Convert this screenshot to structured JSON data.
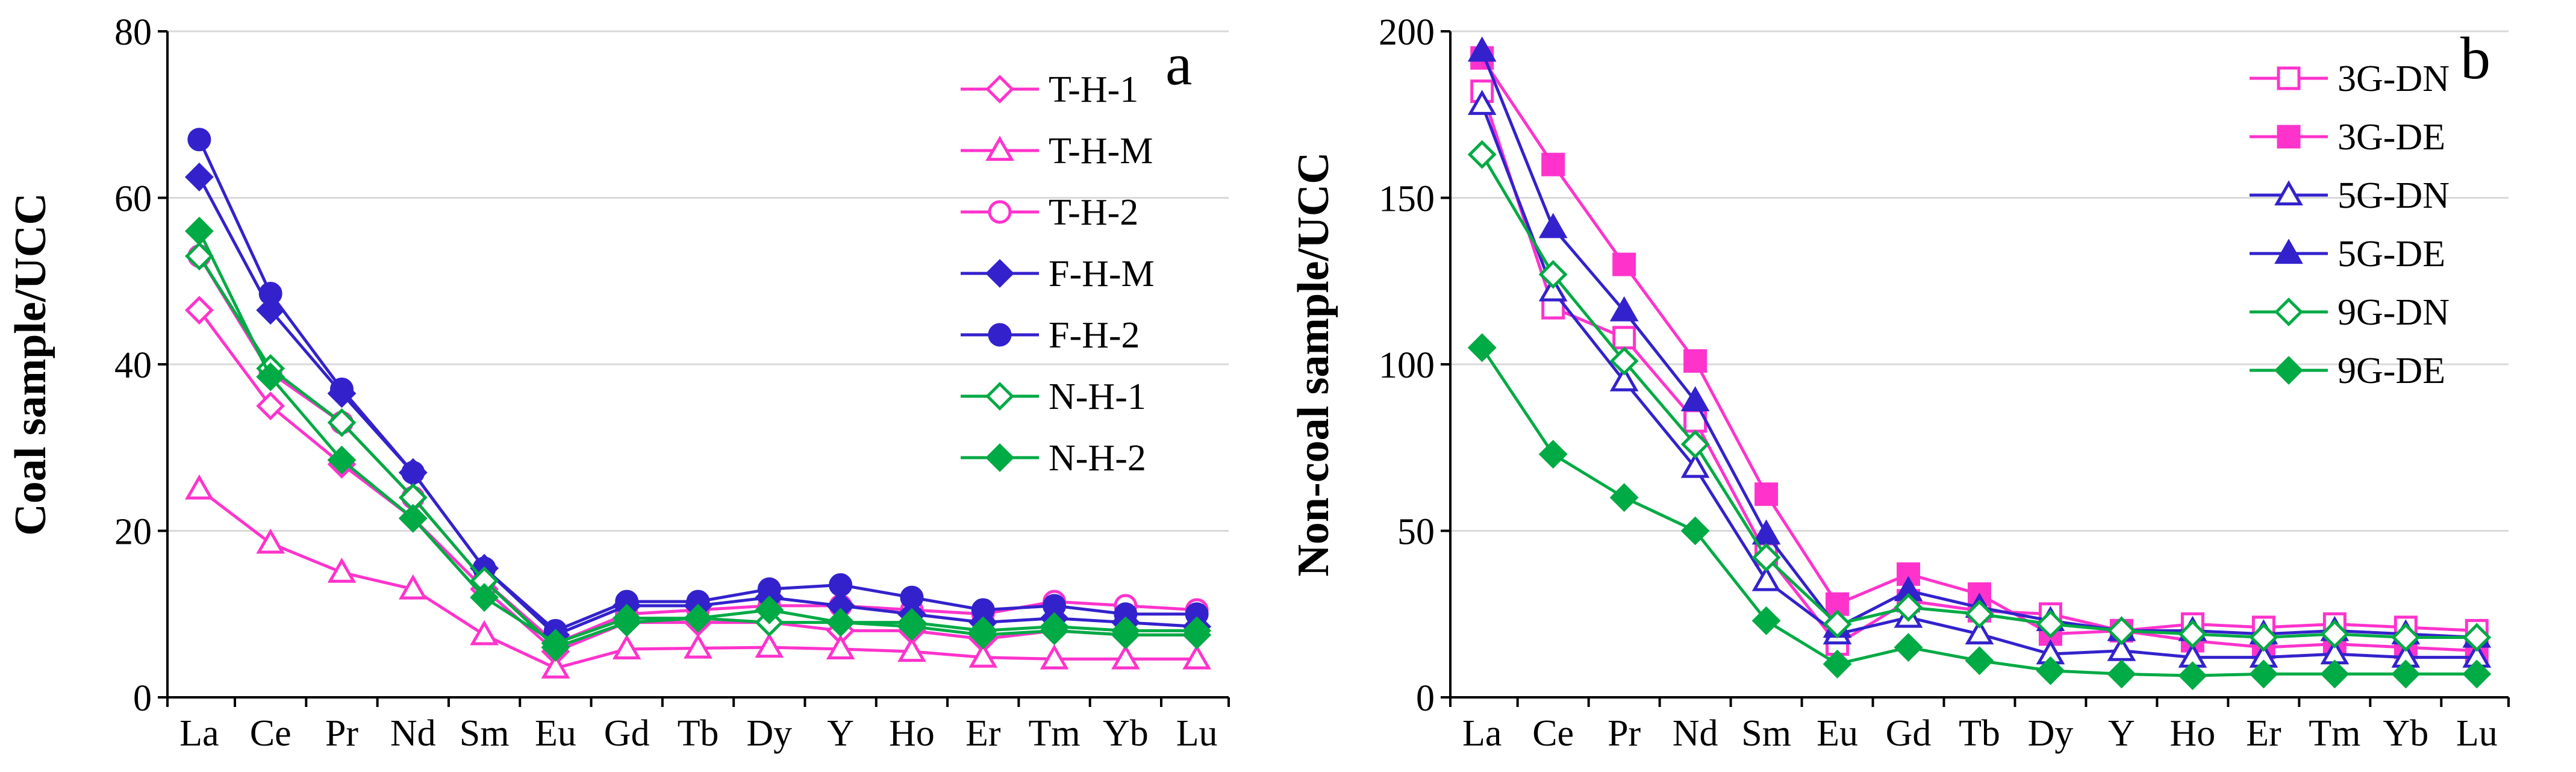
{
  "chart_data": [
    {
      "type": "line",
      "panel_label": "a",
      "title": "",
      "xlabel": "",
      "ylabel": "Coal sample/UCC",
      "ylim": [
        0,
        80
      ],
      "yticks": [
        0,
        20,
        40,
        60,
        80
      ],
      "grid": true,
      "legend_position": "top-right",
      "categories": [
        "La",
        "Ce",
        "Pr",
        "Nd",
        "Sm",
        "Eu",
        "Gd",
        "Tb",
        "Dy",
        "Y",
        "Ho",
        "Er",
        "Tm",
        "Yb",
        "Lu"
      ],
      "series": [
        {
          "name": "T-H-1",
          "color": "#ff33cc",
          "marker": "diamond",
          "filled": false,
          "values": [
            46.5,
            35,
            28,
            21.5,
            13,
            5.5,
            9,
            9,
            9,
            8,
            8,
            7,
            8,
            7.5,
            7.5
          ]
        },
        {
          "name": "T-H-M",
          "color": "#ff33cc",
          "marker": "triangle",
          "filled": false,
          "values": [
            25,
            18.5,
            15,
            13,
            7.5,
            3.5,
            5.8,
            5.9,
            6,
            5.8,
            5.5,
            4.8,
            4.6,
            4.6,
            4.6
          ]
        },
        {
          "name": "T-H-2",
          "color": "#ff33cc",
          "marker": "circle",
          "filled": false,
          "values": [
            53,
            39,
            33,
            24,
            14,
            6.5,
            10,
            10.5,
            11,
            11,
            10.5,
            10,
            11.5,
            11,
            10.5
          ]
        },
        {
          "name": "F-H-M",
          "color": "#3322cc",
          "marker": "diamond",
          "filled": true,
          "values": [
            62.5,
            46.5,
            36.5,
            27,
            15.5,
            7.5,
            11,
            11,
            12,
            11,
            10,
            9,
            9.5,
            9,
            8.5
          ]
        },
        {
          "name": "F-H-2",
          "color": "#3322cc",
          "marker": "circle",
          "filled": true,
          "values": [
            67,
            48.5,
            37,
            27,
            15.5,
            8,
            11.5,
            11.5,
            13,
            13.5,
            12,
            10.5,
            11,
            10,
            10
          ]
        },
        {
          "name": "N-H-1",
          "color": "#00aa44",
          "marker": "diamond",
          "filled": false,
          "values": [
            53,
            39.5,
            33,
            24,
            14,
            6,
            9,
            9.5,
            9,
            9,
            8.5,
            7.5,
            8,
            7.5,
            7.5
          ]
        },
        {
          "name": "N-H-2",
          "color": "#00aa44",
          "marker": "diamond",
          "filled": true,
          "values": [
            56,
            38.5,
            28.5,
            21.5,
            12,
            6.5,
            9.5,
            9.5,
            10.5,
            9,
            9,
            8,
            8.5,
            8,
            8
          ]
        }
      ]
    },
    {
      "type": "line",
      "panel_label": "b",
      "title": "",
      "xlabel": "",
      "ylabel": "Non-coal sample/UCC",
      "ylim": [
        0,
        200
      ],
      "yticks": [
        0,
        50,
        100,
        150,
        200
      ],
      "grid": true,
      "legend_position": "top-right",
      "categories": [
        "La",
        "Ce",
        "Pr",
        "Nd",
        "Sm",
        "Eu",
        "Gd",
        "Tb",
        "Dy",
        "Y",
        "Ho",
        "Er",
        "Tm",
        "Yb",
        "Lu"
      ],
      "series": [
        {
          "name": "3G-DN",
          "color": "#ff33cc",
          "marker": "square",
          "filled": false,
          "values": [
            182,
            117,
            108,
            83,
            43,
            16,
            29,
            26,
            25,
            20,
            22,
            21,
            22,
            21,
            20
          ]
        },
        {
          "name": "3G-DE",
          "color": "#ff33cc",
          "marker": "square",
          "filled": true,
          "values": [
            192,
            160,
            130,
            101,
            61,
            28,
            37,
            31,
            19,
            20,
            17,
            15,
            16,
            15,
            14
          ]
        },
        {
          "name": "5G-DN",
          "color": "#3322cc",
          "marker": "triangle",
          "filled": false,
          "values": [
            178,
            122,
            95,
            69,
            35,
            19,
            24,
            19,
            13,
            14,
            12,
            12,
            13,
            12,
            12
          ]
        },
        {
          "name": "5G-DE",
          "color": "#3322cc",
          "marker": "triangle",
          "filled": true,
          "values": [
            194,
            141,
            116,
            89,
            49,
            21,
            32,
            27,
            23,
            20,
            20,
            19,
            20,
            19,
            18
          ]
        },
        {
          "name": "9G-DN",
          "color": "#00aa44",
          "marker": "diamond",
          "filled": false,
          "values": [
            163,
            127,
            101,
            76,
            42,
            22,
            27,
            25,
            22,
            20,
            19,
            18,
            19,
            18,
            18
          ]
        },
        {
          "name": "9G-DE",
          "color": "#00aa44",
          "marker": "diamond",
          "filled": true,
          "values": [
            105,
            73,
            60,
            50,
            23,
            10,
            15,
            11,
            8,
            7,
            6.5,
            7,
            7,
            7,
            7
          ]
        }
      ]
    }
  ]
}
